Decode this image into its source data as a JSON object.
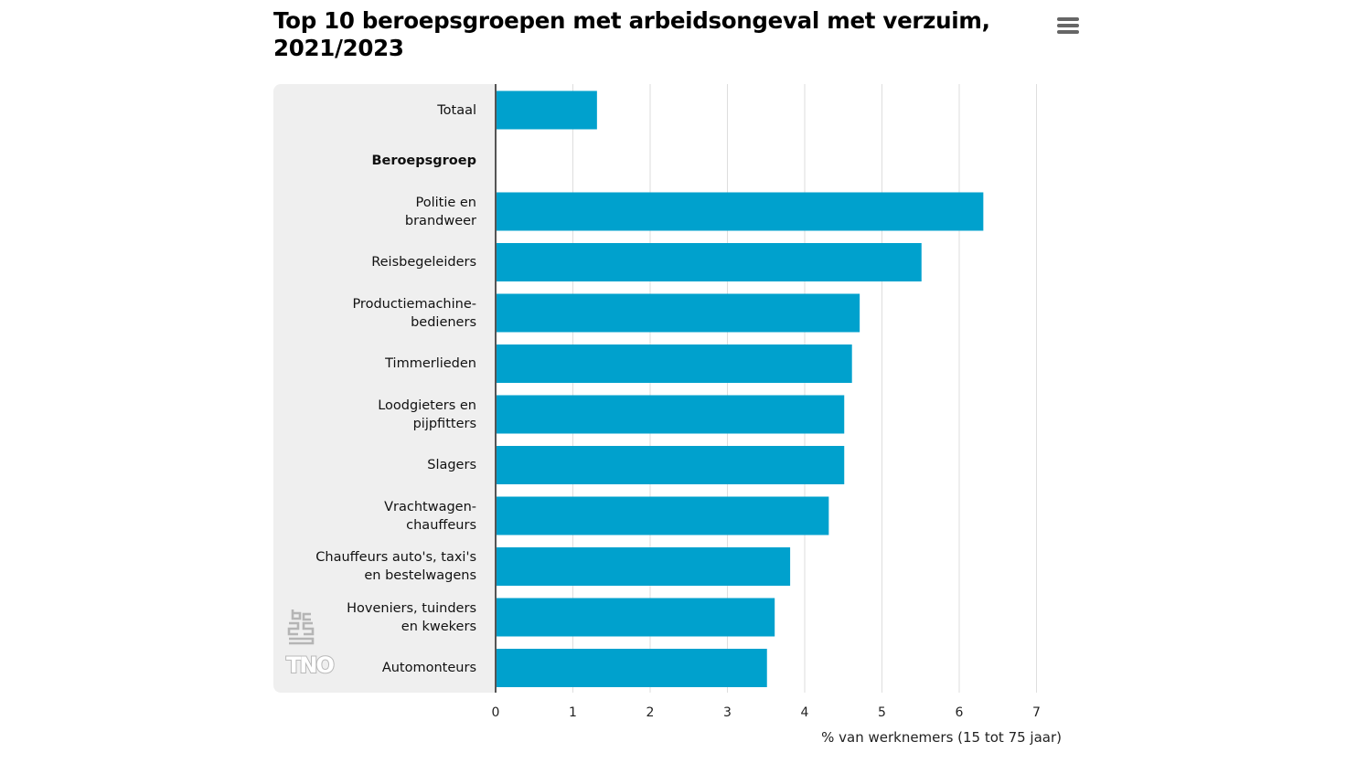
{
  "chart_data": {
    "type": "bar",
    "orientation": "horizontal",
    "title": "Top 10 beroepsgroepen met arbeidsongeval met verzuim, 2021/2023",
    "xlabel": "% van werknemers (15 tot 75 jaar)",
    "xlim": [
      0,
      7
    ],
    "xticks": [
      "0",
      "1",
      "2",
      "3",
      "4",
      "5",
      "6",
      "7"
    ],
    "grid": true,
    "categories": [
      {
        "label": "Totaal",
        "bold": false,
        "value": 1.3
      },
      {
        "label": "Beroepsgroep",
        "bold": true,
        "value": null
      },
      {
        "label": "Politie en\nbrandweer",
        "bold": false,
        "value": 6.3
      },
      {
        "label": "Reisbegeleiders",
        "bold": false,
        "value": 5.5
      },
      {
        "label": "Productiemachine-\nbedieners",
        "bold": false,
        "value": 4.7
      },
      {
        "label": "Timmerlieden",
        "bold": false,
        "value": 4.6
      },
      {
        "label": "Loodgieters en\npijpfitters",
        "bold": false,
        "value": 4.5
      },
      {
        "label": "Slagers",
        "bold": false,
        "value": 4.5
      },
      {
        "label": "Vrachtwagen-\nchauffeurs",
        "bold": false,
        "value": 4.3
      },
      {
        "label": "Chauffeurs auto's, taxi's\nen bestelwagens",
        "bold": false,
        "value": 3.8
      },
      {
        "label": "Hoveniers, tuinders\nen kwekers",
        "bold": false,
        "value": 3.6
      },
      {
        "label": "Automonteurs",
        "bold": false,
        "value": 3.5
      }
    ],
    "bar_color": "#00a1cd"
  },
  "logos": {
    "cbs": "cbs-logo-icon",
    "tno": "TNO"
  },
  "menu_icon": "hamburger-menu-icon"
}
